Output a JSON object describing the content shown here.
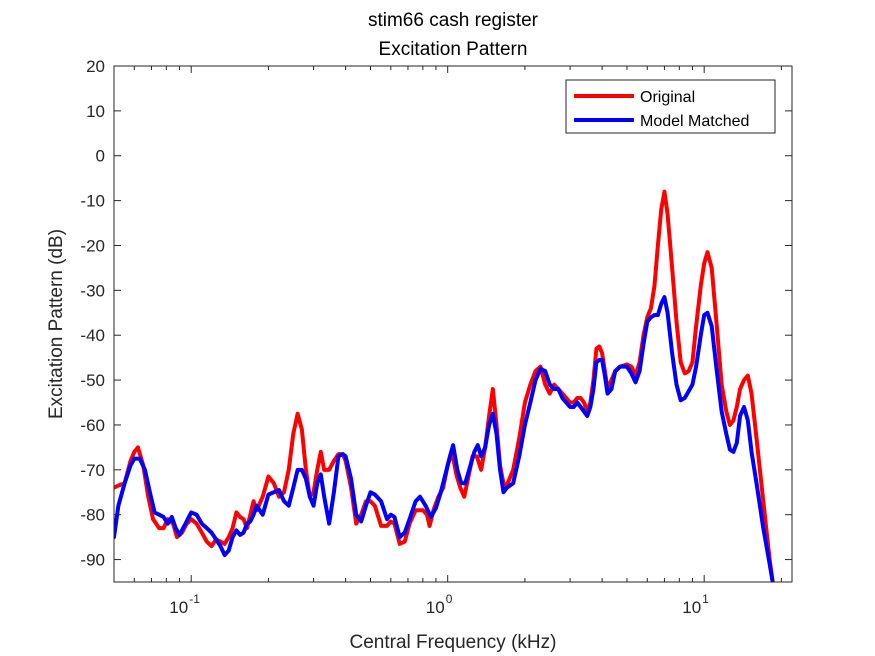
{
  "chart_data": {
    "type": "line",
    "title": "stim66 cash register",
    "subtitle": "Excitation Pattern",
    "xlabel": "Central Frequency (kHz)",
    "ylabel": "Excitation Pattern (dB)",
    "xscale": "log",
    "xlim": [
      0.05,
      22
    ],
    "ylim": [
      -95,
      20
    ],
    "yticks": [
      20,
      10,
      0,
      -10,
      -20,
      -30,
      -40,
      -50,
      -60,
      -70,
      -80,
      -90
    ],
    "xticks": [
      {
        "value": 0.1,
        "base": "10",
        "exp": "-1"
      },
      {
        "value": 1,
        "base": "10",
        "exp": "0"
      },
      {
        "value": 10,
        "base": "10",
        "exp": "1"
      }
    ],
    "legend_position": "top-right",
    "grid": false,
    "series": [
      {
        "name": "Original",
        "color": "#ff0000",
        "points": [
          [
            0.05,
            -74
          ],
          [
            0.052,
            -73.5
          ],
          [
            0.055,
            -73
          ],
          [
            0.058,
            -68
          ],
          [
            0.06,
            -66
          ],
          [
            0.062,
            -65
          ],
          [
            0.065,
            -69
          ],
          [
            0.068,
            -76
          ],
          [
            0.071,
            -81
          ],
          [
            0.075,
            -83
          ],
          [
            0.078,
            -83
          ],
          [
            0.081,
            -81
          ],
          [
            0.085,
            -82
          ],
          [
            0.088,
            -85
          ],
          [
            0.092,
            -84
          ],
          [
            0.096,
            -82
          ],
          [
            0.1,
            -81
          ],
          [
            0.105,
            -82
          ],
          [
            0.11,
            -84
          ],
          [
            0.115,
            -86
          ],
          [
            0.12,
            -87
          ],
          [
            0.125,
            -85.5
          ],
          [
            0.13,
            -86
          ],
          [
            0.135,
            -86.5
          ],
          [
            0.14,
            -85
          ],
          [
            0.145,
            -83
          ],
          [
            0.15,
            -79.5
          ],
          [
            0.155,
            -80.5
          ],
          [
            0.16,
            -81
          ],
          [
            0.165,
            -83
          ],
          [
            0.17,
            -80
          ],
          [
            0.175,
            -77
          ],
          [
            0.18,
            -79
          ],
          [
            0.19,
            -76
          ],
          [
            0.2,
            -71.5
          ],
          [
            0.21,
            -73
          ],
          [
            0.22,
            -76
          ],
          [
            0.23,
            -75
          ],
          [
            0.24,
            -70
          ],
          [
            0.25,
            -62
          ],
          [
            0.26,
            -57.5
          ],
          [
            0.27,
            -61
          ],
          [
            0.28,
            -70
          ],
          [
            0.29,
            -76
          ],
          [
            0.3,
            -75
          ],
          [
            0.31,
            -70
          ],
          [
            0.32,
            -66
          ],
          [
            0.33,
            -70
          ],
          [
            0.345,
            -70
          ],
          [
            0.36,
            -68
          ],
          [
            0.375,
            -66.5
          ],
          [
            0.39,
            -66.5
          ],
          [
            0.4,
            -68
          ],
          [
            0.42,
            -74
          ],
          [
            0.44,
            -82
          ],
          [
            0.46,
            -80
          ],
          [
            0.48,
            -77
          ],
          [
            0.5,
            -77
          ],
          [
            0.52,
            -78
          ],
          [
            0.55,
            -82.5
          ],
          [
            0.58,
            -82.5
          ],
          [
            0.6,
            -81.5
          ],
          [
            0.62,
            -82
          ],
          [
            0.65,
            -86.5
          ],
          [
            0.68,
            -86
          ],
          [
            0.71,
            -82
          ],
          [
            0.75,
            -79
          ],
          [
            0.8,
            -79
          ],
          [
            0.83,
            -80
          ],
          [
            0.85,
            -82.5
          ],
          [
            0.88,
            -79
          ],
          [
            0.92,
            -76
          ],
          [
            0.96,
            -74
          ],
          [
            1.0,
            -69
          ],
          [
            1.04,
            -66
          ],
          [
            1.08,
            -71
          ],
          [
            1.12,
            -74
          ],
          [
            1.16,
            -76
          ],
          [
            1.2,
            -72
          ],
          [
            1.25,
            -67
          ],
          [
            1.3,
            -67
          ],
          [
            1.35,
            -70
          ],
          [
            1.4,
            -65
          ],
          [
            1.45,
            -58
          ],
          [
            1.5,
            -52
          ],
          [
            1.55,
            -60
          ],
          [
            1.6,
            -69
          ],
          [
            1.65,
            -73
          ],
          [
            1.7,
            -73.5
          ],
          [
            1.8,
            -70
          ],
          [
            1.9,
            -63
          ],
          [
            2.0,
            -55
          ],
          [
            2.1,
            -51
          ],
          [
            2.2,
            -48
          ],
          [
            2.3,
            -47
          ],
          [
            2.4,
            -51
          ],
          [
            2.5,
            -53
          ],
          [
            2.6,
            -51
          ],
          [
            2.7,
            -52
          ],
          [
            2.8,
            -53
          ],
          [
            2.9,
            -54
          ],
          [
            3.0,
            -55
          ],
          [
            3.1,
            -55
          ],
          [
            3.2,
            -54
          ],
          [
            3.3,
            -54
          ],
          [
            3.4,
            -55
          ],
          [
            3.5,
            -57
          ],
          [
            3.6,
            -55
          ],
          [
            3.7,
            -50
          ],
          [
            3.8,
            -43
          ],
          [
            3.9,
            -42.5
          ],
          [
            4.0,
            -44
          ],
          [
            4.1,
            -48
          ],
          [
            4.2,
            -52
          ],
          [
            4.35,
            -50
          ],
          [
            4.5,
            -48
          ],
          [
            4.7,
            -47
          ],
          [
            5.0,
            -46.5
          ],
          [
            5.2,
            -47
          ],
          [
            5.4,
            -49
          ],
          [
            5.6,
            -46
          ],
          [
            5.8,
            -40
          ],
          [
            6.0,
            -36
          ],
          [
            6.2,
            -34
          ],
          [
            6.4,
            -29
          ],
          [
            6.6,
            -20
          ],
          [
            6.8,
            -12
          ],
          [
            7.0,
            -8
          ],
          [
            7.2,
            -13
          ],
          [
            7.5,
            -25
          ],
          [
            7.8,
            -37
          ],
          [
            8.1,
            -46
          ],
          [
            8.4,
            -48.5
          ],
          [
            8.7,
            -48
          ],
          [
            9.0,
            -46
          ],
          [
            9.3,
            -38
          ],
          [
            9.7,
            -29
          ],
          [
            10.0,
            -24
          ],
          [
            10.3,
            -21.5
          ],
          [
            10.7,
            -25
          ],
          [
            11.2,
            -38
          ],
          [
            11.7,
            -51
          ],
          [
            12.2,
            -57
          ],
          [
            12.6,
            -60
          ],
          [
            13.0,
            -59
          ],
          [
            13.4,
            -56
          ],
          [
            13.8,
            -52
          ],
          [
            14.3,
            -50
          ],
          [
            14.8,
            -49
          ],
          [
            15.3,
            -53
          ],
          [
            16.0,
            -63
          ],
          [
            17.0,
            -77
          ],
          [
            18.0,
            -90
          ],
          [
            18.5,
            -95
          ]
        ]
      },
      {
        "name": "Model Matched",
        "color": "#0000ff",
        "points": [
          [
            0.05,
            -85
          ],
          [
            0.052,
            -78
          ],
          [
            0.055,
            -73
          ],
          [
            0.058,
            -69
          ],
          [
            0.06,
            -67.5
          ],
          [
            0.063,
            -67.5
          ],
          [
            0.066,
            -70
          ],
          [
            0.069,
            -75
          ],
          [
            0.072,
            -79.5
          ],
          [
            0.075,
            -80
          ],
          [
            0.078,
            -80.5
          ],
          [
            0.081,
            -82
          ],
          [
            0.084,
            -80.5
          ],
          [
            0.087,
            -83
          ],
          [
            0.09,
            -84.5
          ],
          [
            0.095,
            -82
          ],
          [
            0.1,
            -79.5
          ],
          [
            0.105,
            -80
          ],
          [
            0.11,
            -82
          ],
          [
            0.115,
            -83
          ],
          [
            0.12,
            -84
          ],
          [
            0.125,
            -85.5
          ],
          [
            0.13,
            -87
          ],
          [
            0.135,
            -89
          ],
          [
            0.14,
            -88
          ],
          [
            0.145,
            -85
          ],
          [
            0.15,
            -83.5
          ],
          [
            0.155,
            -84.5
          ],
          [
            0.16,
            -84
          ],
          [
            0.165,
            -82
          ],
          [
            0.17,
            -81.5
          ],
          [
            0.175,
            -80
          ],
          [
            0.18,
            -78
          ],
          [
            0.19,
            -80
          ],
          [
            0.2,
            -75.5
          ],
          [
            0.21,
            -75
          ],
          [
            0.22,
            -74.5
          ],
          [
            0.23,
            -77
          ],
          [
            0.24,
            -78
          ],
          [
            0.25,
            -74
          ],
          [
            0.26,
            -70
          ],
          [
            0.27,
            -70
          ],
          [
            0.28,
            -72
          ],
          [
            0.29,
            -76
          ],
          [
            0.3,
            -78
          ],
          [
            0.31,
            -73
          ],
          [
            0.32,
            -71
          ],
          [
            0.33,
            -76
          ],
          [
            0.345,
            -82
          ],
          [
            0.36,
            -75
          ],
          [
            0.375,
            -67
          ],
          [
            0.39,
            -66.5
          ],
          [
            0.4,
            -67
          ],
          [
            0.42,
            -72
          ],
          [
            0.44,
            -80
          ],
          [
            0.46,
            -81.5
          ],
          [
            0.48,
            -78
          ],
          [
            0.5,
            -75
          ],
          [
            0.52,
            -75.5
          ],
          [
            0.55,
            -77
          ],
          [
            0.58,
            -81
          ],
          [
            0.6,
            -80
          ],
          [
            0.62,
            -80.5
          ],
          [
            0.65,
            -85
          ],
          [
            0.68,
            -84
          ],
          [
            0.71,
            -81
          ],
          [
            0.75,
            -77
          ],
          [
            0.78,
            -76
          ],
          [
            0.82,
            -78
          ],
          [
            0.86,
            -80.5
          ],
          [
            0.9,
            -78.5
          ],
          [
            0.94,
            -75
          ],
          [
            0.98,
            -71
          ],
          [
            1.02,
            -67
          ],
          [
            1.05,
            -64.5
          ],
          [
            1.09,
            -70
          ],
          [
            1.13,
            -73
          ],
          [
            1.17,
            -73
          ],
          [
            1.22,
            -69.5
          ],
          [
            1.27,
            -66
          ],
          [
            1.31,
            -64.5
          ],
          [
            1.35,
            -67
          ],
          [
            1.4,
            -65
          ],
          [
            1.45,
            -60
          ],
          [
            1.5,
            -57.5
          ],
          [
            1.55,
            -62
          ],
          [
            1.6,
            -70
          ],
          [
            1.65,
            -75
          ],
          [
            1.7,
            -74
          ],
          [
            1.8,
            -73
          ],
          [
            1.9,
            -67
          ],
          [
            2.0,
            -60
          ],
          [
            2.1,
            -55
          ],
          [
            2.2,
            -50
          ],
          [
            2.3,
            -47.5
          ],
          [
            2.4,
            -48
          ],
          [
            2.5,
            -51
          ],
          [
            2.6,
            -52
          ],
          [
            2.7,
            -52
          ],
          [
            2.8,
            -54
          ],
          [
            2.9,
            -55
          ],
          [
            3.0,
            -56
          ],
          [
            3.1,
            -56
          ],
          [
            3.2,
            -55
          ],
          [
            3.3,
            -56
          ],
          [
            3.4,
            -57
          ],
          [
            3.5,
            -58
          ],
          [
            3.6,
            -56
          ],
          [
            3.7,
            -52
          ],
          [
            3.8,
            -46
          ],
          [
            3.9,
            -45.5
          ],
          [
            4.0,
            -45.5
          ],
          [
            4.1,
            -49
          ],
          [
            4.2,
            -53
          ],
          [
            4.35,
            -52
          ],
          [
            4.5,
            -48
          ],
          [
            4.7,
            -47
          ],
          [
            5.0,
            -47
          ],
          [
            5.2,
            -48.5
          ],
          [
            5.4,
            -50.5
          ],
          [
            5.6,
            -48
          ],
          [
            5.8,
            -42
          ],
          [
            6.0,
            -37
          ],
          [
            6.2,
            -36
          ],
          [
            6.4,
            -35.5
          ],
          [
            6.6,
            -35.5
          ],
          [
            6.8,
            -33
          ],
          [
            7.0,
            -31.5
          ],
          [
            7.2,
            -35
          ],
          [
            7.5,
            -44
          ],
          [
            7.8,
            -51
          ],
          [
            8.1,
            -54.5
          ],
          [
            8.4,
            -54
          ],
          [
            8.7,
            -52.5
          ],
          [
            9.0,
            -51
          ],
          [
            9.3,
            -47
          ],
          [
            9.7,
            -40
          ],
          [
            10.0,
            -35.5
          ],
          [
            10.3,
            -35
          ],
          [
            10.7,
            -38
          ],
          [
            11.2,
            -48
          ],
          [
            11.7,
            -57
          ],
          [
            12.2,
            -62
          ],
          [
            12.6,
            -65.5
          ],
          [
            13.0,
            -66
          ],
          [
            13.4,
            -64
          ],
          [
            13.8,
            -58
          ],
          [
            14.3,
            -56
          ],
          [
            14.8,
            -59
          ],
          [
            15.3,
            -66
          ],
          [
            16.0,
            -73
          ],
          [
            17.0,
            -83
          ],
          [
            18.0,
            -91
          ],
          [
            18.5,
            -95
          ]
        ]
      }
    ]
  }
}
